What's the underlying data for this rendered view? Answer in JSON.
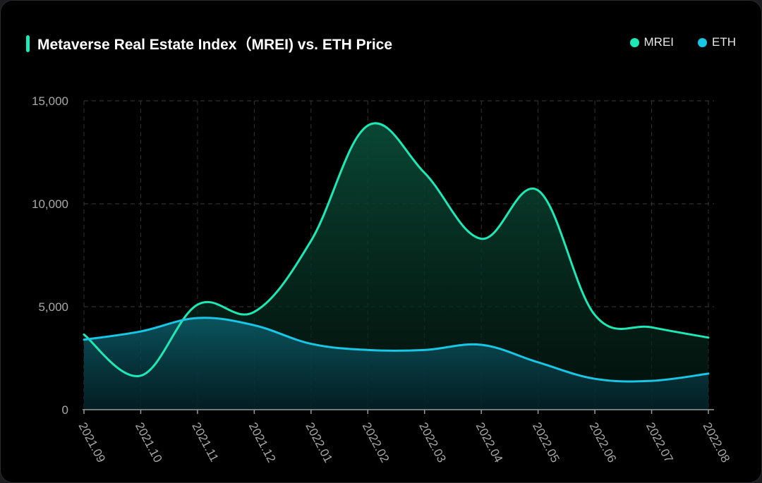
{
  "chart_data": {
    "type": "area",
    "title": "Metaverse Real Estate Index（MREI) vs. ETH Price",
    "xlabel": "",
    "ylabel": "",
    "categories": [
      "2021.09",
      "2021.10",
      "2021.11",
      "2021.12",
      "2022.01",
      "2022.02",
      "2022.03",
      "2022.04",
      "2022.05",
      "2022.06",
      "2022.07",
      "2022.08"
    ],
    "y_ticks": [
      "0",
      "5,000",
      "10,000",
      "15,000"
    ],
    "y_tick_values": [
      0,
      5000,
      10000,
      15000
    ],
    "ylim": [
      0,
      15000
    ],
    "grid": true,
    "legend_position": "top-right",
    "series": [
      {
        "name": "MREI",
        "color": "#1de9b6",
        "values": [
          3650,
          1650,
          5100,
          4750,
          8200,
          13800,
          11500,
          8300,
          10650,
          4600,
          4000,
          3500
        ]
      },
      {
        "name": "ETH",
        "color": "#17c7e6",
        "values": [
          3400,
          3800,
          4450,
          4100,
          3200,
          2900,
          2900,
          3150,
          2300,
          1500,
          1400,
          1750
        ]
      }
    ]
  }
}
